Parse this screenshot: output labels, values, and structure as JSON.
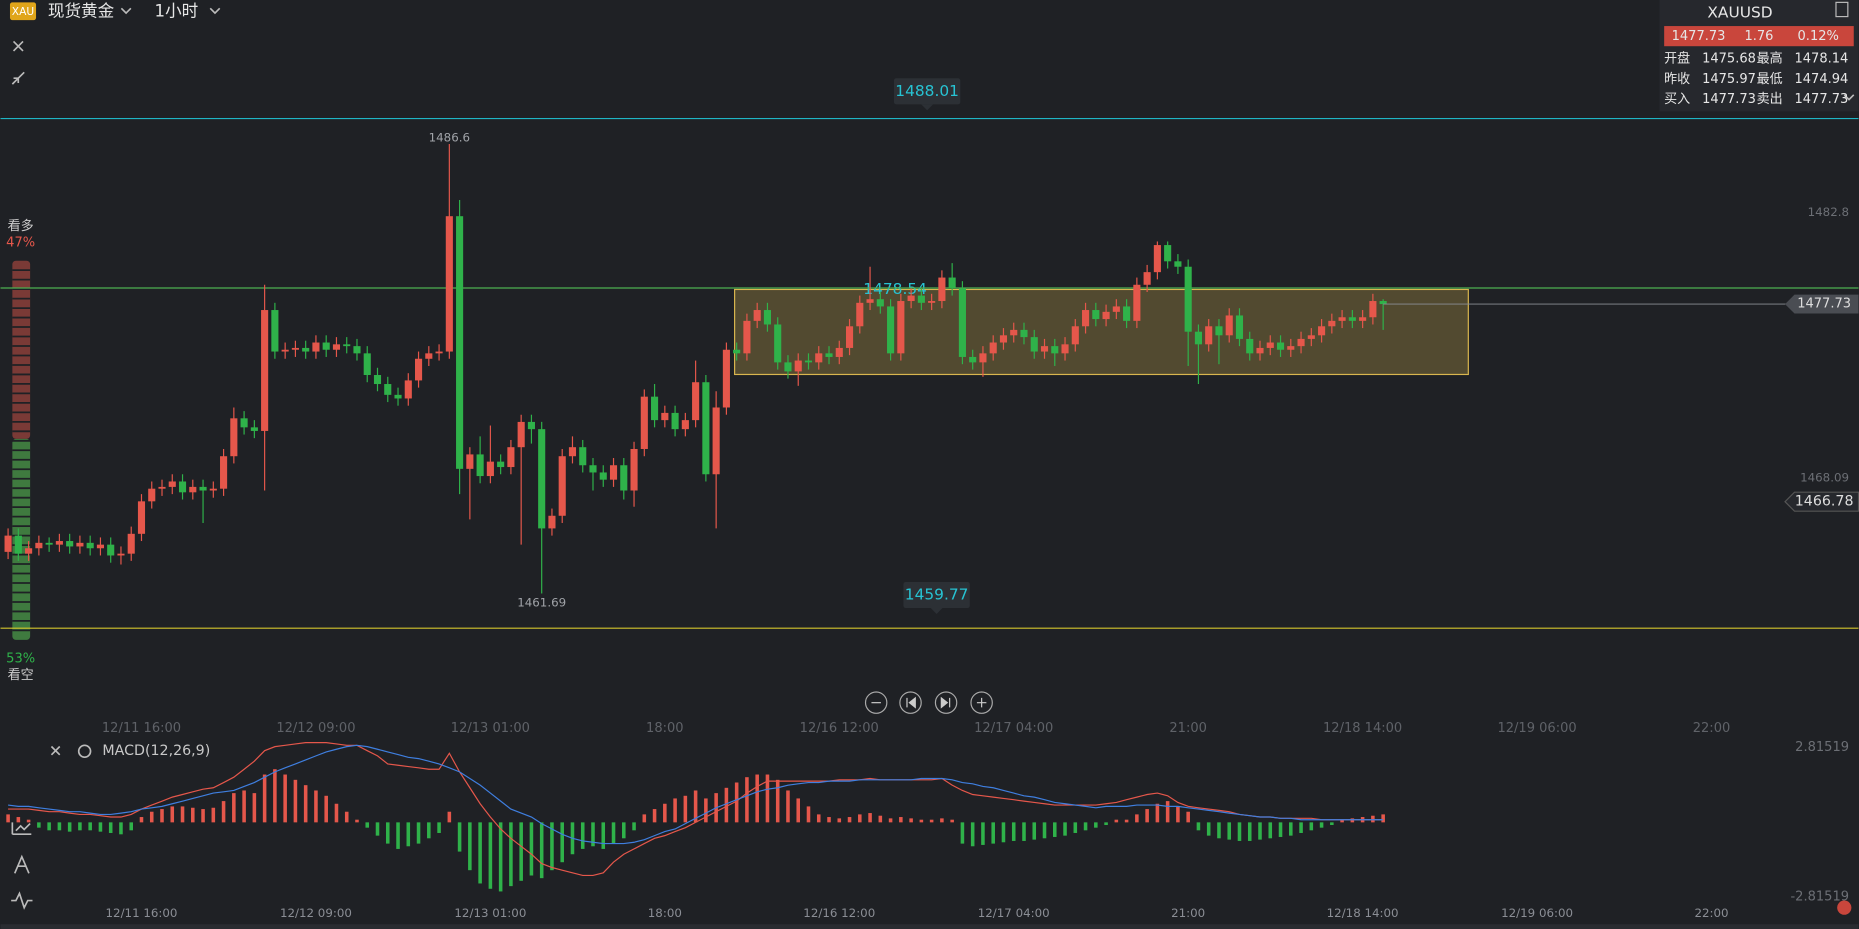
{
  "header": {
    "badge": "XAU",
    "instrument": "现货黄金",
    "period": "1小时"
  },
  "quote": {
    "symbol": "XAUUSD",
    "last": "1477.73",
    "change": "1.76",
    "change_pct": "0.12%",
    "rows": [
      [
        "开盘",
        "1475.68",
        "最高",
        "1478.14"
      ],
      [
        "昨收",
        "1475.97",
        "最低",
        "1474.94"
      ],
      [
        "买入",
        "1477.73",
        "卖出",
        "1477.73"
      ]
    ]
  },
  "sentiment": {
    "long_label": "看多",
    "long": {
      "value": 47,
      "label": "47%"
    },
    "short": {
      "value": 53,
      "label": "53%"
    },
    "short_label": "看空"
  },
  "chart_data": {
    "type": "candlestick",
    "up_color": "#e5574b",
    "down_color": "#2fb24a",
    "open": [
      1464.0,
      1464.9,
      1463.9,
      1464.2,
      1464.5,
      1464.4,
      1464.6,
      1464.3,
      1464.5,
      1464.2,
      1464.4,
      1463.8,
      1463.9,
      1465.0,
      1466.8,
      1467.5,
      1467.6,
      1467.9,
      1467.3,
      1467.6,
      1467.4,
      1467.5,
      1469.3,
      1471.4,
      1470.9,
      1470.7,
      1477.4,
      1475.1,
      1475.2,
      1475.3,
      1475.1,
      1475.6,
      1475.2,
      1475.5,
      1475.4,
      1475.0,
      1473.8,
      1473.3,
      1472.7,
      1472.5,
      1473.5,
      1474.7,
      1475.0,
      1475.1,
      1482.6,
      1468.6,
      1469.4,
      1468.2,
      1469.0,
      1468.7,
      1469.8,
      1471.2,
      1470.8,
      1465.3,
      1466.0,
      1469.3,
      1469.8,
      1468.8,
      1468.4,
      1468.0,
      1468.8,
      1467.4,
      1469.7,
      1472.6,
      1471.3,
      1471.7,
      1470.8,
      1471.3,
      1473.4,
      1468.3,
      1472.0,
      1475.2,
      1475.0,
      1476.8,
      1477.4,
      1476.6,
      1474.5,
      1474.0,
      1474.6,
      1474.5,
      1475.0,
      1474.8,
      1475.3,
      1476.5,
      1477.8,
      1478.0,
      1477.6,
      1475.0,
      1477.9,
      1478.2,
      1477.8,
      1477.9,
      1479.2,
      1478.6,
      1474.8,
      1474.5,
      1475.0,
      1475.6,
      1476.0,
      1476.3,
      1475.9,
      1475.1,
      1475.4,
      1475.0,
      1475.5,
      1476.5,
      1477.4,
      1476.9,
      1477.3,
      1477.6,
      1476.8,
      1478.8,
      1479.5,
      1481.0,
      1480.1,
      1479.8,
      1476.2,
      1475.5,
      1476.5,
      1476.0,
      1477.1,
      1475.8,
      1475.0,
      1475.3,
      1475.6,
      1475.2,
      1475.4,
      1475.8,
      1476.0,
      1476.5,
      1476.8,
      1477.0,
      1476.8,
      1477.0,
      1477.9
    ],
    "high": [
      1465.3,
      1465.3,
      1464.6,
      1464.9,
      1464.8,
      1465.0,
      1465.0,
      1464.9,
      1464.9,
      1464.8,
      1464.8,
      1464.3,
      1465.4,
      1467.2,
      1467.9,
      1468.0,
      1468.3,
      1468.3,
      1468.0,
      1468.0,
      1467.9,
      1469.7,
      1472.0,
      1471.8,
      1471.3,
      1478.8,
      1477.8,
      1475.6,
      1475.7,
      1475.7,
      1476.0,
      1476.0,
      1475.9,
      1475.9,
      1475.8,
      1475.4,
      1474.2,
      1473.7,
      1473.1,
      1473.9,
      1475.1,
      1475.4,
      1475.5,
      1486.6,
      1483.5,
      1469.8,
      1470.4,
      1471.0,
      1469.4,
      1470.2,
      1471.6,
      1471.6,
      1471.2,
      1466.4,
      1469.7,
      1470.4,
      1470.2,
      1469.2,
      1468.8,
      1469.2,
      1469.2,
      1470.1,
      1473.0,
      1473.3,
      1472.1,
      1472.1,
      1471.7,
      1474.6,
      1473.8,
      1472.9,
      1475.6,
      1475.6,
      1477.2,
      1477.8,
      1477.8,
      1477.0,
      1474.9,
      1475.0,
      1475.0,
      1475.4,
      1475.4,
      1475.7,
      1476.9,
      1478.2,
      1479.8,
      1478.4,
      1478.0,
      1478.3,
      1478.6,
      1478.6,
      1478.3,
      1479.6,
      1480.0,
      1479.0,
      1475.2,
      1475.4,
      1476.0,
      1476.4,
      1476.7,
      1476.7,
      1476.3,
      1475.8,
      1475.8,
      1475.9,
      1476.9,
      1477.8,
      1477.8,
      1477.7,
      1478.0,
      1478.0,
      1479.2,
      1479.9,
      1481.2,
      1481.2,
      1480.5,
      1480.2,
      1476.6,
      1476.9,
      1476.9,
      1477.5,
      1477.5,
      1476.2,
      1475.7,
      1476.0,
      1476.0,
      1475.8,
      1476.2,
      1476.4,
      1476.9,
      1477.2,
      1477.4,
      1477.4,
      1477.4,
      1478.3,
      1478.0
    ],
    "low": [
      1463.6,
      1463.5,
      1463.5,
      1463.8,
      1464.0,
      1464.0,
      1463.9,
      1463.9,
      1463.8,
      1463.8,
      1463.4,
      1463.3,
      1463.5,
      1464.6,
      1466.4,
      1467.1,
      1467.2,
      1466.9,
      1466.9,
      1465.6,
      1467.0,
      1467.1,
      1468.9,
      1470.5,
      1470.3,
      1467.4,
      1474.7,
      1474.7,
      1474.8,
      1474.7,
      1474.7,
      1474.8,
      1474.8,
      1475.0,
      1474.6,
      1473.4,
      1472.9,
      1472.3,
      1472.1,
      1472.1,
      1473.1,
      1474.3,
      1474.6,
      1474.7,
      1467.2,
      1465.8,
      1467.8,
      1467.8,
      1468.3,
      1468.3,
      1464.4,
      1470.0,
      1461.69,
      1464.9,
      1465.6,
      1468.9,
      1468.4,
      1467.4,
      1467.6,
      1467.6,
      1466.9,
      1466.5,
      1469.3,
      1470.9,
      1470.9,
      1470.4,
      1470.4,
      1470.9,
      1467.9,
      1465.3,
      1471.6,
      1474.6,
      1474.6,
      1476.4,
      1476.2,
      1474.1,
      1473.6,
      1473.2,
      1474.1,
      1474.1,
      1474.4,
      1474.4,
      1474.9,
      1476.1,
      1477.4,
      1477.2,
      1474.6,
      1474.6,
      1477.5,
      1477.4,
      1477.4,
      1477.5,
      1478.2,
      1474.4,
      1474.1,
      1473.7,
      1474.6,
      1475.2,
      1475.6,
      1475.5,
      1474.7,
      1474.7,
      1474.3,
      1474.6,
      1475.1,
      1476.1,
      1476.5,
      1476.5,
      1476.9,
      1476.4,
      1476.4,
      1478.4,
      1479.1,
      1479.7,
      1479.4,
      1474.3,
      1473.3,
      1475.1,
      1474.4,
      1475.6,
      1475.4,
      1474.6,
      1474.6,
      1474.9,
      1474.8,
      1474.8,
      1475.0,
      1475.4,
      1475.6,
      1476.1,
      1476.4,
      1476.4,
      1476.4,
      1476.6,
      1476.3
    ],
    "close": [
      1464.9,
      1463.9,
      1464.2,
      1464.5,
      1464.4,
      1464.6,
      1464.3,
      1464.5,
      1464.2,
      1464.4,
      1463.8,
      1463.9,
      1465.0,
      1466.8,
      1467.5,
      1467.6,
      1467.9,
      1467.3,
      1467.6,
      1467.4,
      1467.5,
      1469.3,
      1471.4,
      1470.9,
      1470.7,
      1477.4,
      1475.1,
      1475.2,
      1475.3,
      1475.1,
      1475.6,
      1475.2,
      1475.5,
      1475.4,
      1475.0,
      1473.8,
      1473.3,
      1472.7,
      1472.5,
      1473.5,
      1474.7,
      1475.0,
      1475.1,
      1482.6,
      1468.6,
      1469.4,
      1468.2,
      1469.0,
      1468.7,
      1469.8,
      1471.2,
      1470.8,
      1465.3,
      1466.0,
      1469.3,
      1469.8,
      1468.8,
      1468.4,
      1468.0,
      1468.8,
      1467.4,
      1469.7,
      1472.6,
      1471.3,
      1471.7,
      1470.8,
      1471.3,
      1473.4,
      1468.3,
      1472.0,
      1475.2,
      1475.0,
      1476.8,
      1477.4,
      1476.6,
      1474.5,
      1474.0,
      1474.6,
      1474.5,
      1475.0,
      1474.8,
      1475.3,
      1476.5,
      1477.8,
      1478.0,
      1477.6,
      1475.0,
      1477.9,
      1478.2,
      1477.8,
      1477.9,
      1479.2,
      1478.6,
      1474.8,
      1474.5,
      1475.0,
      1475.6,
      1476.0,
      1476.3,
      1475.9,
      1475.1,
      1475.4,
      1475.0,
      1475.5,
      1476.5,
      1477.4,
      1476.9,
      1477.3,
      1477.6,
      1476.8,
      1478.8,
      1479.5,
      1481.0,
      1480.1,
      1479.8,
      1476.2,
      1475.5,
      1476.5,
      1476.0,
      1477.1,
      1475.8,
      1475.0,
      1475.3,
      1475.6,
      1475.2,
      1475.4,
      1475.8,
      1476.0,
      1476.5,
      1476.8,
      1477.0,
      1476.8,
      1477.0,
      1477.9,
      1477.73
    ],
    "ylim": [
      1455.84,
      1494.58
    ],
    "yticks": [
      1482.8,
      1468.09
    ],
    "xticks": [
      {
        "value": 13,
        "label": "12/11 16:00"
      },
      {
        "value": 30,
        "label": "12/12 09:00"
      },
      {
        "value": 47,
        "label": "12/13 01:00"
      },
      {
        "value": 64,
        "label": "18:00"
      },
      {
        "value": 81,
        "label": "12/16 12:00"
      },
      {
        "value": 98,
        "label": "12/17 04:00"
      },
      {
        "value": 115,
        "label": "21:00"
      },
      {
        "value": 132,
        "label": "12/18 14:00"
      },
      {
        "value": 149,
        "label": "12/19 06:00"
      },
      {
        "value": 166,
        "label": "22:00"
      }
    ],
    "price_lines": [
      {
        "value": 1488.01,
        "color": "#1fb5c4"
      },
      {
        "value": 1459.77,
        "color": "#d4c62c"
      }
    ],
    "hline": {
      "value": 1478.62,
      "color": "#4caf50"
    },
    "box": {
      "top": 1478.54,
      "bottom": 1473.83,
      "start": 70.8,
      "end": 142.3,
      "color": "#d9b64f"
    },
    "alert": 1466.78,
    "indicator": {
      "title": "MACD(12,26,9)",
      "ylim": [
        -3.3,
        3.3
      ],
      "yticks": [
        2.81519,
        -2.81519
      ],
      "dif_color": "#e5574b",
      "dea_color": "#3f7fe0",
      "histogram": [
        0.3,
        0.2,
        0.1,
        -0.2,
        -0.3,
        -0.3,
        -0.35,
        -0.3,
        -0.3,
        -0.35,
        -0.4,
        -0.45,
        -0.3,
        0.2,
        0.4,
        0.5,
        0.6,
        0.6,
        0.55,
        0.5,
        0.55,
        0.8,
        1.1,
        1.2,
        1.1,
        1.8,
        2.0,
        1.8,
        1.6,
        1.4,
        1.2,
        1.0,
        0.7,
        0.4,
        0.1,
        -0.2,
        -0.5,
        -0.8,
        -1.0,
        -0.9,
        -0.8,
        -0.6,
        -0.4,
        0.4,
        -1.1,
        -1.8,
        -2.3,
        -2.5,
        -2.6,
        -2.4,
        -2.2,
        -2.0,
        -2.1,
        -1.8,
        -1.5,
        -1.2,
        -1.0,
        -0.9,
        -1.0,
        -0.8,
        -0.6,
        -0.3,
        0.3,
        0.5,
        0.7,
        0.9,
        1.0,
        1.2,
        0.9,
        1.1,
        1.3,
        1.5,
        1.7,
        1.8,
        1.8,
        1.6,
        1.2,
        0.9,
        0.6,
        0.3,
        0.2,
        0.15,
        0.2,
        0.3,
        0.35,
        0.25,
        0.15,
        0.2,
        0.15,
        0.1,
        0.1,
        0.15,
        0.1,
        -0.8,
        -0.9,
        -0.85,
        -0.8,
        -0.75,
        -0.7,
        -0.7,
        -0.65,
        -0.6,
        -0.55,
        -0.5,
        -0.4,
        -0.3,
        -0.2,
        -0.1,
        0.1,
        0.1,
        0.3,
        0.5,
        0.7,
        0.8,
        0.6,
        0.4,
        -0.3,
        -0.5,
        -0.6,
        -0.65,
        -0.7,
        -0.7,
        -0.65,
        -0.6,
        -0.55,
        -0.5,
        -0.4,
        -0.3,
        -0.2,
        -0.1,
        0.1,
        0.15,
        0.2,
        0.25,
        0.3
      ],
      "dif": [
        0.5,
        0.5,
        0.5,
        0.45,
        0.4,
        0.4,
        0.35,
        0.3,
        0.3,
        0.25,
        0.2,
        0.2,
        0.3,
        0.5,
        0.65,
        0.8,
        0.95,
        1.05,
        1.15,
        1.25,
        1.3,
        1.5,
        1.7,
        2.0,
        2.3,
        2.7,
        2.85,
        2.9,
        2.95,
        3.0,
        3.0,
        3.0,
        2.95,
        2.9,
        2.9,
        2.7,
        2.5,
        2.2,
        2.15,
        2.1,
        2.05,
        2.0,
        2.0,
        2.6,
        1.9,
        1.3,
        0.7,
        0.2,
        -0.25,
        -0.6,
        -0.9,
        -1.2,
        -1.55,
        -1.7,
        -1.8,
        -1.9,
        -2.0,
        -2.0,
        -1.9,
        -1.5,
        -1.2,
        -1.0,
        -0.8,
        -0.6,
        -0.5,
        -0.35,
        -0.2,
        0.0,
        0.2,
        0.4,
        0.6,
        0.8,
        1.1,
        1.35,
        1.55,
        1.55,
        1.55,
        1.55,
        1.55,
        1.55,
        1.55,
        1.6,
        1.6,
        1.6,
        1.65,
        1.6,
        1.6,
        1.6,
        1.6,
        1.6,
        1.6,
        1.65,
        1.4,
        1.2,
        1.05,
        1.0,
        0.95,
        0.9,
        0.85,
        0.8,
        0.75,
        0.7,
        0.65,
        0.65,
        0.65,
        0.65,
        0.65,
        0.7,
        0.75,
        0.85,
        0.95,
        1.05,
        1.1,
        1.0,
        0.75,
        0.6,
        0.55,
        0.5,
        0.45,
        0.4,
        0.3,
        0.25,
        0.2,
        0.2,
        0.15,
        0.15,
        0.15,
        0.15,
        0.1,
        0.1,
        0.1,
        0.1,
        0.1,
        0.1,
        0.1
      ],
      "dea": [
        0.65,
        0.6,
        0.6,
        0.55,
        0.5,
        0.45,
        0.4,
        0.4,
        0.35,
        0.3,
        0.3,
        0.35,
        0.4,
        0.5,
        0.55,
        0.6,
        0.7,
        0.8,
        0.9,
        1.0,
        1.1,
        1.15,
        1.2,
        1.35,
        1.5,
        1.7,
        1.9,
        2.05,
        2.2,
        2.35,
        2.5,
        2.65,
        2.75,
        2.85,
        2.9,
        2.85,
        2.75,
        2.65,
        2.55,
        2.45,
        2.4,
        2.3,
        2.2,
        2.05,
        1.9,
        1.65,
        1.4,
        1.1,
        0.8,
        0.5,
        0.35,
        0.2,
        -0.05,
        -0.25,
        -0.45,
        -0.6,
        -0.7,
        -0.75,
        -0.8,
        -0.8,
        -0.8,
        -0.75,
        -0.65,
        -0.5,
        -0.35,
        -0.25,
        -0.05,
        0.15,
        0.35,
        0.55,
        0.7,
        0.85,
        1.0,
        1.15,
        1.25,
        1.3,
        1.4,
        1.45,
        1.5,
        1.5,
        1.55,
        1.55,
        1.55,
        1.6,
        1.6,
        1.6,
        1.6,
        1.6,
        1.6,
        1.65,
        1.65,
        1.65,
        1.6,
        1.5,
        1.45,
        1.35,
        1.3,
        1.2,
        1.1,
        1.0,
        0.95,
        0.85,
        0.75,
        0.7,
        0.65,
        0.6,
        0.55,
        0.6,
        0.6,
        0.6,
        0.65,
        0.65,
        0.65,
        0.6,
        0.6,
        0.55,
        0.5,
        0.45,
        0.4,
        0.35,
        0.3,
        0.25,
        0.2,
        0.2,
        0.15,
        0.15,
        0.1,
        0.1,
        0.1,
        0.1,
        0.1,
        0.1,
        0.1,
        0.1,
        0.1
      ]
    }
  }
}
